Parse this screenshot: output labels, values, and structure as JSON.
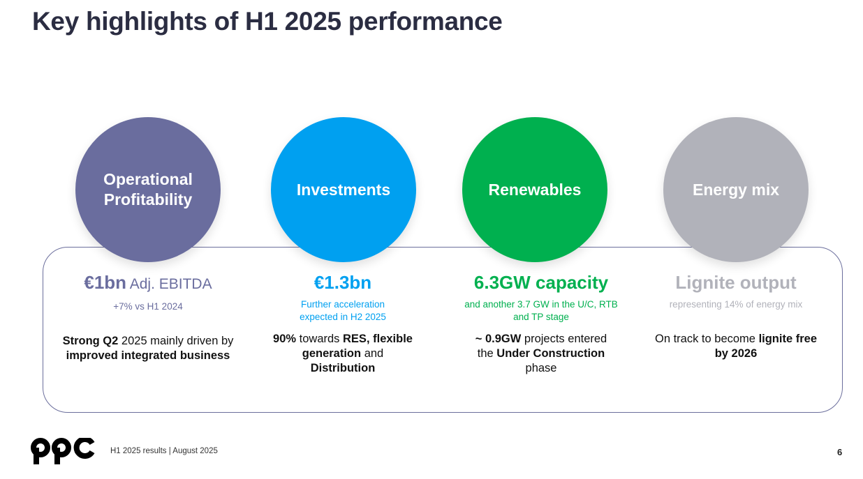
{
  "title": "Key highlights of H1 2025 performance",
  "columns": [
    {
      "circle_label_line1": "Operational",
      "circle_label_line2": "Profitability",
      "color": "#6a6d9e",
      "metric": "€1bn",
      "metric_suffix": " Adj. EBITDA",
      "sub": "+7% vs H1 2024",
      "body": [
        {
          "text": "Strong Q2",
          "bold": true
        },
        {
          "text": " 2025 mainly driven by ",
          "bold": false
        },
        {
          "text": "improved integrated business",
          "bold": true
        }
      ]
    },
    {
      "circle_label_line1": "Investments",
      "circle_label_line2": "",
      "color": "#00a0f0",
      "metric": "€1.3bn",
      "metric_suffix": "",
      "sub": "Further acceleration expected in H2 2025",
      "body": [
        {
          "text": "90%",
          "bold": true
        },
        {
          "text": " towards ",
          "bold": false
        },
        {
          "text": "RES, flexible generation",
          "bold": true
        },
        {
          "text": " and ",
          "bold": false
        },
        {
          "text": "Distribution",
          "bold": true
        }
      ]
    },
    {
      "circle_label_line1": "Renewables",
      "circle_label_line2": "",
      "color": "#00b04f",
      "metric": "6.3GW capacity",
      "metric_suffix": "",
      "sub": "and another 3.7 GW in the U/C, RTB and TP stage",
      "body": [
        {
          "text": "~ 0.9GW",
          "bold": true
        },
        {
          "text": " projects entered the ",
          "bold": false
        },
        {
          "text": "Under Construction",
          "bold": true
        },
        {
          "text": " phase",
          "bold": false
        }
      ]
    },
    {
      "circle_label_line1": "Energy mix",
      "circle_label_line2": "",
      "color": "#b1b2ba",
      "metric": "Lignite output",
      "metric_suffix": "",
      "sub": "representing 14% of energy mix",
      "body": [
        {
          "text": "On track to become ",
          "bold": false
        },
        {
          "text": "lignite free by 2026",
          "bold": true
        }
      ]
    }
  ],
  "footer": {
    "logo_text": "ppc",
    "text": "H1 2025 results | August 2025",
    "page_number": "6"
  }
}
